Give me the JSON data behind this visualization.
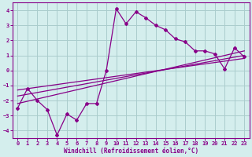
{
  "xlabel": "Windchill (Refroidissement éolien,°C)",
  "bg_color": "#d4eeed",
  "line_color": "#880088",
  "grid_color": "#aacccc",
  "xlim": [
    -0.5,
    23.5
  ],
  "ylim": [
    -4.5,
    4.5
  ],
  "xticks": [
    0,
    1,
    2,
    3,
    4,
    5,
    6,
    7,
    8,
    9,
    10,
    11,
    12,
    13,
    14,
    15,
    16,
    17,
    18,
    19,
    20,
    21,
    22,
    23
  ],
  "yticks": [
    -4,
    -3,
    -2,
    -1,
    0,
    1,
    2,
    3,
    4
  ],
  "jagged_x": [
    0,
    1,
    2,
    3,
    4,
    5,
    6,
    7,
    8,
    9,
    10,
    11,
    12,
    13,
    14,
    15,
    16,
    17,
    18,
    19,
    20,
    21,
    22,
    23
  ],
  "jagged_y": [
    -2.5,
    -1.2,
    -2.0,
    -2.6,
    -4.3,
    -2.9,
    -3.3,
    -2.2,
    -2.2,
    0.0,
    4.1,
    3.1,
    3.9,
    3.5,
    3.0,
    2.7,
    2.1,
    1.9,
    1.3,
    1.3,
    1.1,
    0.1,
    1.5,
    0.9
  ],
  "trend1_x": [
    0,
    23
  ],
  "trend1_y": [
    -2.2,
    1.3
  ],
  "trend2_x": [
    0,
    23
  ],
  "trend2_y": [
    -1.7,
    1.0
  ],
  "trend3_x": [
    0,
    23
  ],
  "trend3_y": [
    -1.3,
    0.8
  ]
}
